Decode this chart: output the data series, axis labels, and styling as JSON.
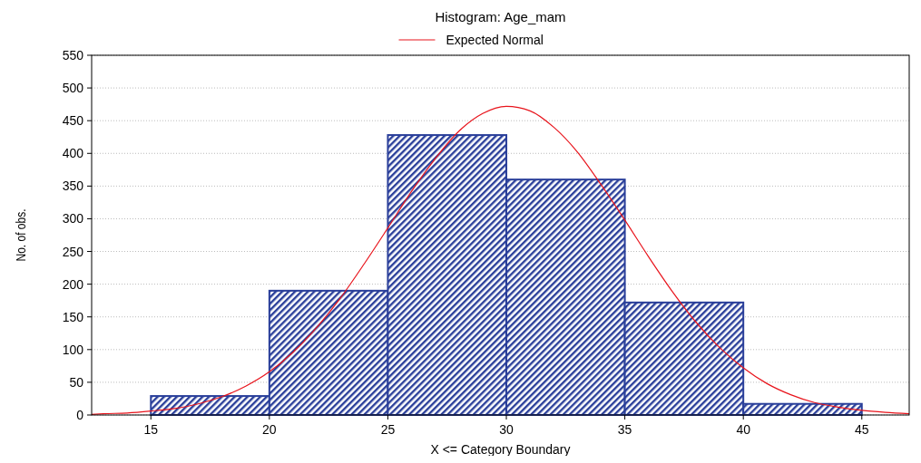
{
  "chart_data": {
    "type": "histogram",
    "title": "Histogram: Age_mam",
    "xlabel": "X <= Category Boundary",
    "ylabel": "No. of obs.",
    "bins": [
      15,
      20,
      25,
      30,
      35,
      40,
      45
    ],
    "values": [
      29,
      190,
      428,
      360,
      172,
      17
    ],
    "color": "#2a3f9a",
    "series": [
      {
        "type": "line",
        "name": "Expected Normal",
        "color": "#e8141c",
        "x": [
          12.5,
          13,
          14,
          15,
          16,
          17,
          18,
          19,
          20,
          21,
          22,
          23,
          24,
          25,
          26,
          27,
          28,
          29,
          30,
          31,
          32,
          33,
          34,
          35,
          36,
          37,
          38,
          39,
          40,
          41,
          42,
          43,
          44,
          45,
          46,
          47
        ],
        "values": [
          1,
          2,
          3,
          6,
          10,
          17,
          28,
          44,
          66,
          96,
          134,
          179,
          231,
          286,
          342,
          392,
          434,
          461,
          472,
          465,
          440,
          402,
          352,
          298,
          242,
          189,
          142,
          103,
          72,
          48,
          31,
          19,
          12,
          7,
          4,
          2
        ]
      }
    ],
    "xlim": [
      12.5,
      47
    ],
    "xticks": [
      15,
      20,
      25,
      30,
      35,
      40,
      45
    ],
    "ylim": [
      0,
      550
    ],
    "yticks": [
      0,
      50,
      100,
      150,
      200,
      250,
      300,
      350,
      400,
      450,
      500,
      550
    ],
    "grid": "y",
    "legend": "top",
    "line_style": "solid",
    "marker": "none"
  }
}
